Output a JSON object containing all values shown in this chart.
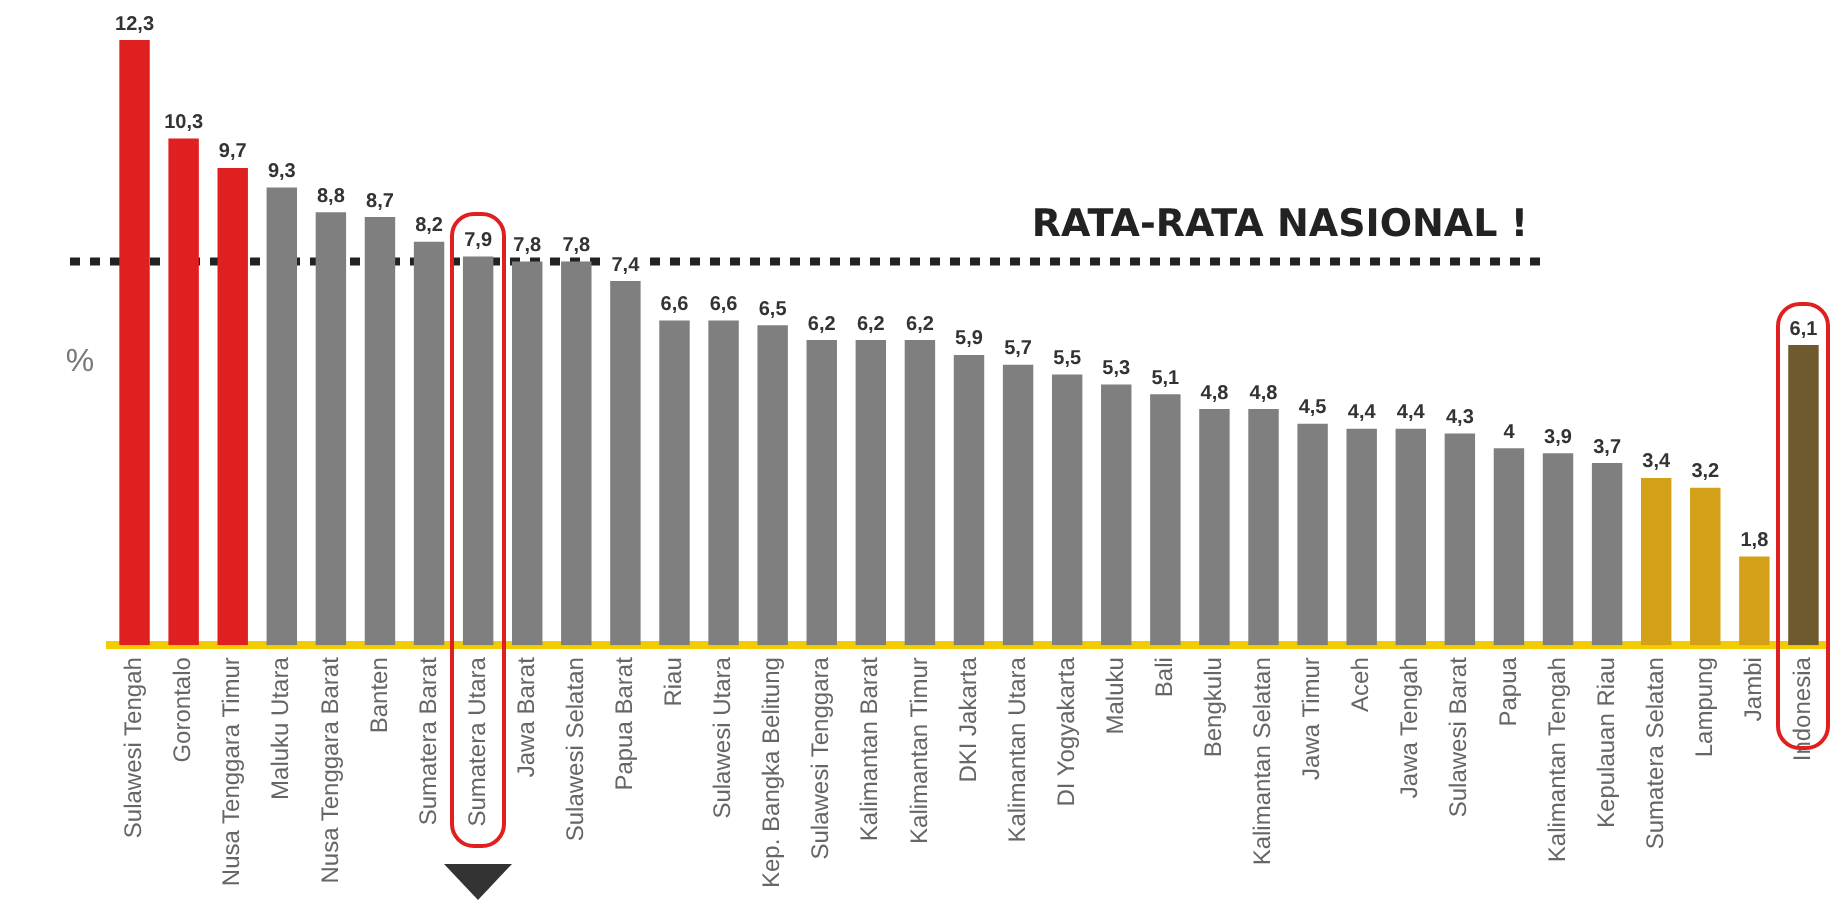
{
  "chart_data": {
    "type": "bar",
    "ylabel": "%",
    "categories": [
      "Sulawesi Tengah",
      "Gorontalo",
      "Nusa Tenggara Timur",
      "Maluku Utara",
      "Nusa Tenggara Barat",
      "Banten",
      "Sumatera Barat",
      "Sumatera Utara",
      "Jawa Barat",
      "Sulawesi Selatan",
      "Papua Barat",
      "Riau",
      "Sulawesi Utara",
      "Kep. Bangka Belitung",
      "Sulawesi Tenggara",
      "Kalimantan Barat",
      "Kalimantan Timur",
      "DKI Jakarta",
      "Kalimantan Utara",
      "DI Yogyakarta",
      "Maluku",
      "Bali",
      "Bengkulu",
      "Kalimantan Selatan",
      "Jawa Timur",
      "Aceh",
      "Jawa Tengah",
      "Sulawesi Barat",
      "Papua",
      "Kalimantan Tengah",
      "Kepulauan Riau",
      "Sumatera Selatan",
      "Lampung",
      "Jambi",
      "Indonesia"
    ],
    "values": [
      12.3,
      10.3,
      9.7,
      9.3,
      8.8,
      8.7,
      8.2,
      7.9,
      7.8,
      7.8,
      7.4,
      6.6,
      6.6,
      6.5,
      6.2,
      6.2,
      6.2,
      5.9,
      5.7,
      5.5,
      5.3,
      5.1,
      4.8,
      4.8,
      4.5,
      4.4,
      4.4,
      4.3,
      4,
      3.9,
      3.7,
      3.4,
      3.2,
      1.8,
      6.1
    ],
    "value_labels": [
      "12,3",
      "10,3",
      "9,7",
      "9,3",
      "8,8",
      "8,7",
      "8,2",
      "7,9",
      "7,8",
      "7,8",
      "7,4",
      "6,6",
      "6,6",
      "6,5",
      "6,2",
      "6,2",
      "6,2",
      "5,9",
      "5,7",
      "5,5",
      "5,3",
      "5,1",
      "4,8",
      "4,8",
      "4,5",
      "4,4",
      "4,4",
      "4,3",
      "4",
      "3,9",
      "3,7",
      "3,4",
      "3,2",
      "1,8",
      "6,1"
    ],
    "colors": [
      "#e02020",
      "#e02020",
      "#e02020",
      "#7f7f7f",
      "#7f7f7f",
      "#7f7f7f",
      "#7f7f7f",
      "#7f7f7f",
      "#7f7f7f",
      "#7f7f7f",
      "#7f7f7f",
      "#7f7f7f",
      "#7f7f7f",
      "#7f7f7f",
      "#7f7f7f",
      "#7f7f7f",
      "#7f7f7f",
      "#7f7f7f",
      "#7f7f7f",
      "#7f7f7f",
      "#7f7f7f",
      "#7f7f7f",
      "#7f7f7f",
      "#7f7f7f",
      "#7f7f7f",
      "#7f7f7f",
      "#7f7f7f",
      "#7f7f7f",
      "#7f7f7f",
      "#7f7f7f",
      "#7f7f7f",
      "#d4a017",
      "#d4a017",
      "#d4a017",
      "#6e5a2e"
    ],
    "ylim": [
      0,
      12.3
    ],
    "ref_lines": [
      {
        "axis": "y",
        "value": 7.8,
        "label": "RATA-RATA NASIONAL !",
        "color": "#222222",
        "line_style": "dotted"
      }
    ],
    "legend": false
  }
}
